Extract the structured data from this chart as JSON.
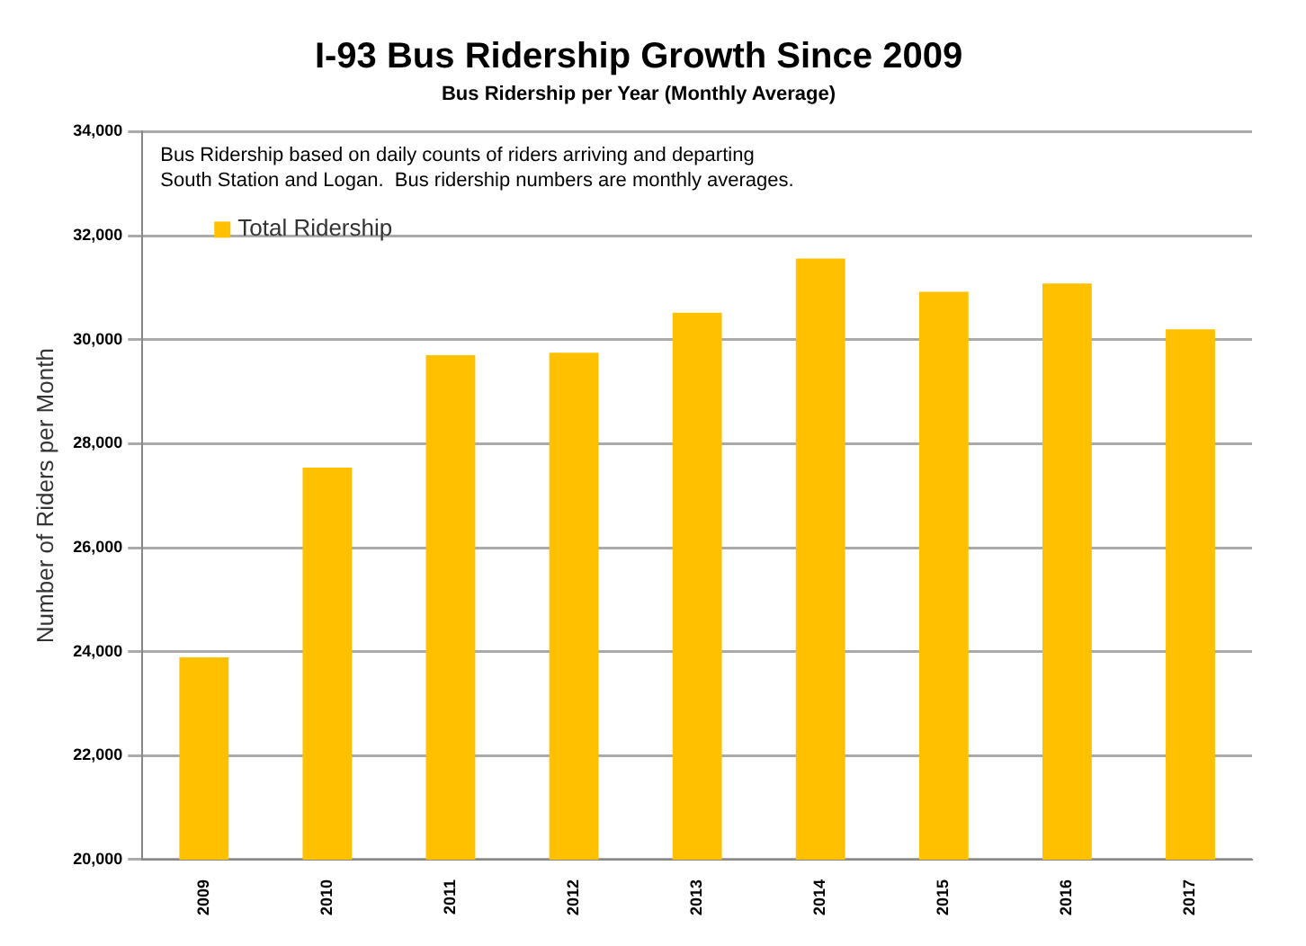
{
  "chart_data": {
    "type": "bar",
    "title": "I-93 Bus Ridership Growth Since 2009",
    "subtitle": "Bus Ridership per Year (Monthly Average)",
    "ylabel": "Number of Riders per Month",
    "categories": [
      "2009",
      "2010",
      "2011",
      "2012",
      "2013",
      "2014",
      "2015",
      "2016",
      "2017"
    ],
    "series": [
      {
        "name": "Total Ridership",
        "color": "#ffc000",
        "values": [
          23890,
          27540,
          29700,
          29750,
          30520,
          31560,
          30920,
          31080,
          30200
        ]
      }
    ],
    "ylim": [
      20000,
      34000
    ],
    "yticks": [
      {
        "value": 20000,
        "label": "20,000"
      },
      {
        "value": 22000,
        "label": "22,000"
      },
      {
        "value": 24000,
        "label": "24,000"
      },
      {
        "value": 26000,
        "label": "26,000"
      },
      {
        "value": 28000,
        "label": "28,000"
      },
      {
        "value": 30000,
        "label": "30,000"
      },
      {
        "value": 32000,
        "label": "32,000"
      },
      {
        "value": 34000,
        "label": "34,000"
      }
    ],
    "grid": "y",
    "legend": "top left",
    "annotations": [
      "Bus Ridership based on daily counts of riders arriving and departing South Station and Logan.  Bus ridership numbers are monthly averages."
    ]
  }
}
